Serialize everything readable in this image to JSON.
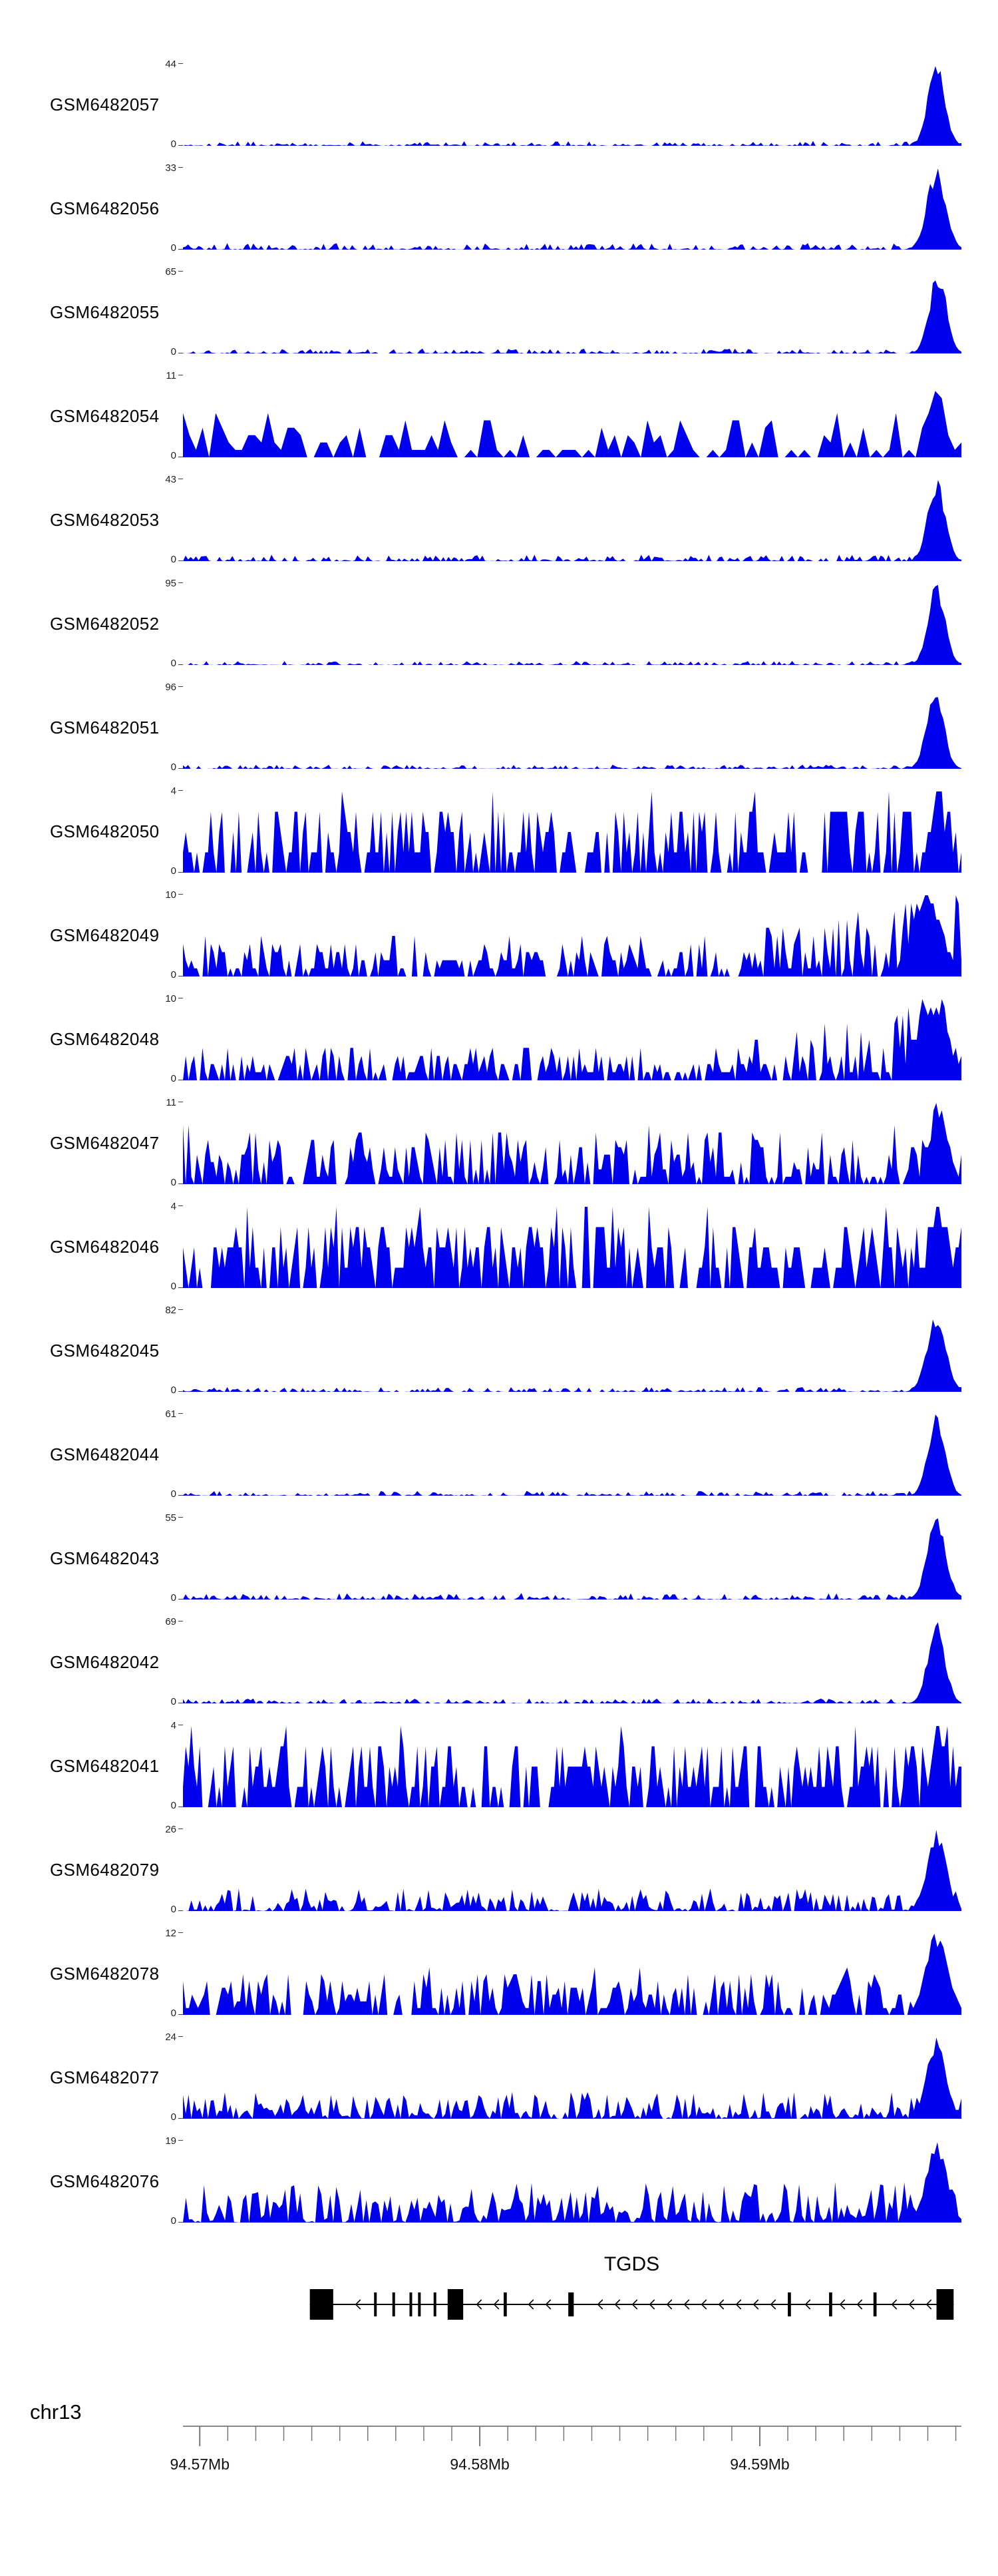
{
  "colors": {
    "coverage": "#0000ee",
    "gene": "#000000",
    "axis_line": "#888888",
    "tick": "#777777",
    "tick_text": "#111111"
  },
  "y_axis": {
    "zero_label": "0"
  },
  "chart_data": {
    "type": "area",
    "description": "Stacked genome-browser coverage tracks (GEO samples) over the TGDS locus on chr13",
    "region": {
      "chrom": "chr13",
      "start_mb": 94.5694,
      "end_mb": 94.5972
    },
    "x_axis": {
      "unit": "Mb",
      "major_ticks": [
        {
          "mb": 94.57,
          "label": "94.57Mb"
        },
        {
          "mb": 94.58,
          "label": "94.58Mb"
        },
        {
          "mb": 94.59,
          "label": "94.59Mb"
        }
      ],
      "minor_tick_step_mb": 0.001
    },
    "gene": {
      "name": "TGDS",
      "strand": "-",
      "span": [
        0.163,
        0.99
      ],
      "exons": [
        [
          0.163,
          0.193,
          1
        ],
        [
          0.2455,
          0.2485,
          0
        ],
        [
          0.269,
          0.272,
          0
        ],
        [
          0.291,
          0.294,
          0
        ],
        [
          0.302,
          0.305,
          0
        ],
        [
          0.322,
          0.325,
          0
        ],
        [
          0.34,
          0.36,
          1
        ],
        [
          0.412,
          0.416,
          0
        ],
        [
          0.495,
          0.502,
          0
        ],
        [
          0.777,
          0.781,
          0
        ],
        [
          0.83,
          0.834,
          0
        ],
        [
          0.887,
          0.891,
          0
        ],
        [
          0.968,
          0.99,
          1
        ]
      ]
    },
    "tracks": [
      {
        "label": "GSM6482057",
        "ymax": 44,
        "pattern": "right-peak",
        "seed": 101,
        "points": 300,
        "noise_amp": 0.06,
        "noise_exp": 2.8,
        "peak": {
          "center": 0.968,
          "width": 0.011,
          "height": 1
        }
      },
      {
        "label": "GSM6482056",
        "ymax": 33,
        "pattern": "right-peak",
        "seed": 102,
        "points": 300,
        "noise_amp": 0.08,
        "noise_exp": 2.8,
        "peak": {
          "center": 0.968,
          "width": 0.012,
          "height": 1
        }
      },
      {
        "label": "GSM6482055",
        "ymax": 65,
        "pattern": "right-peak",
        "seed": 103,
        "points": 300,
        "noise_amp": 0.06,
        "noise_exp": 2.9,
        "peak": {
          "center": 0.97,
          "width": 0.011,
          "height": 1
        }
      },
      {
        "label": "GSM6482054",
        "ymax": 11,
        "pattern": "sparse-blocks-right-peak",
        "seed": 104,
        "points": 120,
        "noise_amp": 0.55,
        "noise_exp": 2.1,
        "peak": {
          "center": 0.968,
          "width": 0.01,
          "height": 1
        }
      },
      {
        "label": "GSM6482053",
        "ymax": 43,
        "pattern": "right-peak",
        "seed": 105,
        "points": 300,
        "noise_amp": 0.08,
        "noise_exp": 2.8,
        "peak": {
          "center": 0.968,
          "width": 0.011,
          "height": 1
        }
      },
      {
        "label": "GSM6482052",
        "ymax": 95,
        "pattern": "right-peak",
        "seed": 106,
        "points": 300,
        "noise_amp": 0.05,
        "noise_exp": 2.9,
        "peak": {
          "center": 0.968,
          "width": 0.011,
          "height": 1
        }
      },
      {
        "label": "GSM6482051",
        "ymax": 96,
        "pattern": "right-peak",
        "seed": 107,
        "points": 300,
        "noise_amp": 0.05,
        "noise_exp": 2.9,
        "peak": {
          "center": 0.966,
          "width": 0.011,
          "height": 1
        }
      },
      {
        "label": "GSM6482050",
        "ymax": 4,
        "pattern": "uniform-noise",
        "seed": 108,
        "points": 280,
        "noise_amp": 0.9,
        "noise_exp": 1.5,
        "peak": {
          "center": 0.97,
          "width": 0.01,
          "height": 1
        }
      },
      {
        "label": "GSM6482049",
        "ymax": 10,
        "pattern": "noise-right-rise",
        "seed": 109,
        "points": 280,
        "noise_amp": 0.5,
        "noise_exp": 1.9,
        "ramp": 1.2,
        "peak": {
          "center": 0.955,
          "width": 0.02,
          "height": 1
        }
      },
      {
        "label": "GSM6482048",
        "ymax": 10,
        "pattern": "noise-right-rise",
        "seed": 110,
        "points": 280,
        "noise_amp": 0.45,
        "noise_exp": 1.9,
        "ramp": 1.4,
        "peak": {
          "center": 0.96,
          "width": 0.02,
          "height": 1
        }
      },
      {
        "label": "GSM6482047",
        "ymax": 11,
        "pattern": "uniform-noise",
        "seed": 111,
        "points": 280,
        "noise_amp": 0.7,
        "noise_exp": 2.1,
        "peak": {
          "center": 0.97,
          "width": 0.012,
          "height": 0.95
        }
      },
      {
        "label": "GSM6482046",
        "ymax": 4,
        "pattern": "uniform-noise",
        "seed": 112,
        "points": 280,
        "noise_amp": 0.9,
        "noise_exp": 1.5,
        "peak": {
          "center": 0.97,
          "width": 0.01,
          "height": 0.95
        }
      },
      {
        "label": "GSM6482045",
        "ymax": 82,
        "pattern": "right-peak",
        "seed": 113,
        "points": 300,
        "noise_amp": 0.06,
        "noise_exp": 2.9,
        "peak": {
          "center": 0.968,
          "width": 0.012,
          "height": 1
        }
      },
      {
        "label": "GSM6482044",
        "ymax": 61,
        "pattern": "right-peak",
        "seed": 114,
        "points": 300,
        "noise_amp": 0.06,
        "noise_exp": 2.9,
        "peak": {
          "center": 0.968,
          "width": 0.011,
          "height": 1
        }
      },
      {
        "label": "GSM6482043",
        "ymax": 55,
        "pattern": "right-peak",
        "seed": 115,
        "points": 300,
        "noise_amp": 0.08,
        "noise_exp": 2.8,
        "peak": {
          "center": 0.968,
          "width": 0.012,
          "height": 1
        }
      },
      {
        "label": "GSM6482042",
        "ymax": 69,
        "pattern": "right-peak",
        "seed": 116,
        "points": 300,
        "noise_amp": 0.06,
        "noise_exp": 2.9,
        "peak": {
          "center": 0.968,
          "width": 0.011,
          "height": 1
        }
      },
      {
        "label": "GSM6482041",
        "ymax": 4,
        "pattern": "uniform-noise",
        "seed": 117,
        "points": 280,
        "noise_amp": 0.9,
        "noise_exp": 1.5,
        "peak": {
          "center": 0.97,
          "width": 0.01,
          "height": 1
        }
      },
      {
        "label": "GSM6482079",
        "ymax": 26,
        "pattern": "low-noise-right-peak",
        "seed": 118,
        "points": 280,
        "noise_amp": 0.28,
        "noise_exp": 2.3,
        "peak": {
          "center": 0.968,
          "width": 0.012,
          "height": 1
        }
      },
      {
        "label": "GSM6482078",
        "ymax": 12,
        "pattern": "medium-noise-right-peak",
        "seed": 119,
        "points": 260,
        "noise_amp": 0.55,
        "noise_exp": 1.9,
        "peak": {
          "center": 0.968,
          "width": 0.014,
          "height": 1
        }
      },
      {
        "label": "GSM6482077",
        "ymax": 24,
        "pattern": "low-noise-right-peak",
        "seed": 120,
        "points": 280,
        "noise_amp": 0.33,
        "noise_exp": 2.1,
        "peak": {
          "center": 0.968,
          "width": 0.012,
          "height": 1
        }
      },
      {
        "label": "GSM6482076",
        "ymax": 19,
        "pattern": "medium-noise-right-peak",
        "seed": 121,
        "points": 260,
        "noise_amp": 0.5,
        "noise_exp": 2.0,
        "peak": {
          "center": 0.968,
          "width": 0.013,
          "height": 1
        }
      }
    ]
  }
}
